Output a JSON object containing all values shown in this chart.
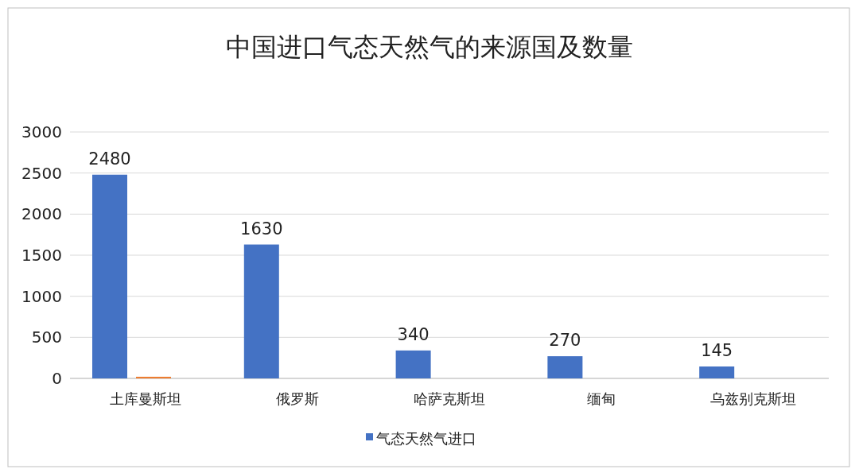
{
  "chart_data": {
    "type": "bar",
    "title": "中国进口气态天然气的来源国及数量",
    "categories": [
      "土库曼斯坦",
      "俄罗斯",
      "哈萨克斯坦",
      "缅甸",
      "乌兹别克斯坦"
    ],
    "series": [
      {
        "name": "气态天然气进口",
        "color": "#4472c4",
        "values": [
          2480,
          1630,
          340,
          270,
          145
        ],
        "value_labels": [
          "2480",
          "1630",
          "340",
          "270",
          "145"
        ]
      },
      {
        "color": "#ed7d31",
        "values": [
          20,
          null,
          null,
          null,
          null
        ]
      }
    ],
    "ylim": [
      0,
      3000
    ],
    "yticks": [
      0,
      500,
      1000,
      1500,
      2000,
      2500,
      3000
    ],
    "grid": "y",
    "legend": "bottom"
  }
}
